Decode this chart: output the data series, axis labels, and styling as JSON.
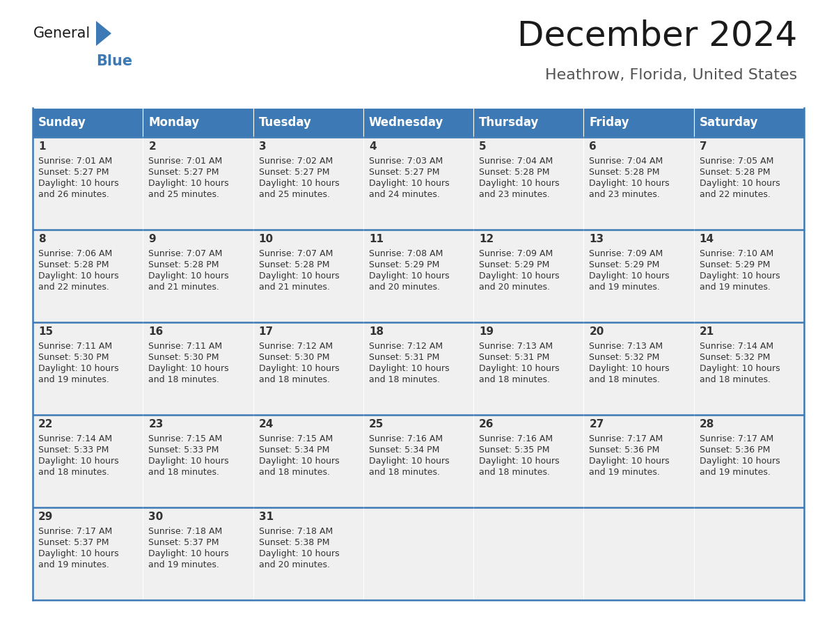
{
  "title": "December 2024",
  "subtitle": "Heathrow, Florida, United States",
  "header_color": "#3d7ab5",
  "header_text_color": "#ffffff",
  "cell_bg": "#f0f0f0",
  "text_color": "#333333",
  "border_color": "#3d7ab5",
  "days_of_week": [
    "Sunday",
    "Monday",
    "Tuesday",
    "Wednesday",
    "Thursday",
    "Friday",
    "Saturday"
  ],
  "calendar": [
    [
      {
        "day": "1",
        "sunrise": "7:01 AM",
        "sunset": "5:27 PM",
        "daylight_line1": "Daylight: 10 hours",
        "daylight_line2": "and 26 minutes."
      },
      {
        "day": "2",
        "sunrise": "7:01 AM",
        "sunset": "5:27 PM",
        "daylight_line1": "Daylight: 10 hours",
        "daylight_line2": "and 25 minutes."
      },
      {
        "day": "3",
        "sunrise": "7:02 AM",
        "sunset": "5:27 PM",
        "daylight_line1": "Daylight: 10 hours",
        "daylight_line2": "and 25 minutes."
      },
      {
        "day": "4",
        "sunrise": "7:03 AM",
        "sunset": "5:27 PM",
        "daylight_line1": "Daylight: 10 hours",
        "daylight_line2": "and 24 minutes."
      },
      {
        "day": "5",
        "sunrise": "7:04 AM",
        "sunset": "5:28 PM",
        "daylight_line1": "Daylight: 10 hours",
        "daylight_line2": "and 23 minutes."
      },
      {
        "day": "6",
        "sunrise": "7:04 AM",
        "sunset": "5:28 PM",
        "daylight_line1": "Daylight: 10 hours",
        "daylight_line2": "and 23 minutes."
      },
      {
        "day": "7",
        "sunrise": "7:05 AM",
        "sunset": "5:28 PM",
        "daylight_line1": "Daylight: 10 hours",
        "daylight_line2": "and 22 minutes."
      }
    ],
    [
      {
        "day": "8",
        "sunrise": "7:06 AM",
        "sunset": "5:28 PM",
        "daylight_line1": "Daylight: 10 hours",
        "daylight_line2": "and 22 minutes."
      },
      {
        "day": "9",
        "sunrise": "7:07 AM",
        "sunset": "5:28 PM",
        "daylight_line1": "Daylight: 10 hours",
        "daylight_line2": "and 21 minutes."
      },
      {
        "day": "10",
        "sunrise": "7:07 AM",
        "sunset": "5:28 PM",
        "daylight_line1": "Daylight: 10 hours",
        "daylight_line2": "and 21 minutes."
      },
      {
        "day": "11",
        "sunrise": "7:08 AM",
        "sunset": "5:29 PM",
        "daylight_line1": "Daylight: 10 hours",
        "daylight_line2": "and 20 minutes."
      },
      {
        "day": "12",
        "sunrise": "7:09 AM",
        "sunset": "5:29 PM",
        "daylight_line1": "Daylight: 10 hours",
        "daylight_line2": "and 20 minutes."
      },
      {
        "day": "13",
        "sunrise": "7:09 AM",
        "sunset": "5:29 PM",
        "daylight_line1": "Daylight: 10 hours",
        "daylight_line2": "and 19 minutes."
      },
      {
        "day": "14",
        "sunrise": "7:10 AM",
        "sunset": "5:29 PM",
        "daylight_line1": "Daylight: 10 hours",
        "daylight_line2": "and 19 minutes."
      }
    ],
    [
      {
        "day": "15",
        "sunrise": "7:11 AM",
        "sunset": "5:30 PM",
        "daylight_line1": "Daylight: 10 hours",
        "daylight_line2": "and 19 minutes."
      },
      {
        "day": "16",
        "sunrise": "7:11 AM",
        "sunset": "5:30 PM",
        "daylight_line1": "Daylight: 10 hours",
        "daylight_line2": "and 18 minutes."
      },
      {
        "day": "17",
        "sunrise": "7:12 AM",
        "sunset": "5:30 PM",
        "daylight_line1": "Daylight: 10 hours",
        "daylight_line2": "and 18 minutes."
      },
      {
        "day": "18",
        "sunrise": "7:12 AM",
        "sunset": "5:31 PM",
        "daylight_line1": "Daylight: 10 hours",
        "daylight_line2": "and 18 minutes."
      },
      {
        "day": "19",
        "sunrise": "7:13 AM",
        "sunset": "5:31 PM",
        "daylight_line1": "Daylight: 10 hours",
        "daylight_line2": "and 18 minutes."
      },
      {
        "day": "20",
        "sunrise": "7:13 AM",
        "sunset": "5:32 PM",
        "daylight_line1": "Daylight: 10 hours",
        "daylight_line2": "and 18 minutes."
      },
      {
        "day": "21",
        "sunrise": "7:14 AM",
        "sunset": "5:32 PM",
        "daylight_line1": "Daylight: 10 hours",
        "daylight_line2": "and 18 minutes."
      }
    ],
    [
      {
        "day": "22",
        "sunrise": "7:14 AM",
        "sunset": "5:33 PM",
        "daylight_line1": "Daylight: 10 hours",
        "daylight_line2": "and 18 minutes."
      },
      {
        "day": "23",
        "sunrise": "7:15 AM",
        "sunset": "5:33 PM",
        "daylight_line1": "Daylight: 10 hours",
        "daylight_line2": "and 18 minutes."
      },
      {
        "day": "24",
        "sunrise": "7:15 AM",
        "sunset": "5:34 PM",
        "daylight_line1": "Daylight: 10 hours",
        "daylight_line2": "and 18 minutes."
      },
      {
        "day": "25",
        "sunrise": "7:16 AM",
        "sunset": "5:34 PM",
        "daylight_line1": "Daylight: 10 hours",
        "daylight_line2": "and 18 minutes."
      },
      {
        "day": "26",
        "sunrise": "7:16 AM",
        "sunset": "5:35 PM",
        "daylight_line1": "Daylight: 10 hours",
        "daylight_line2": "and 18 minutes."
      },
      {
        "day": "27",
        "sunrise": "7:17 AM",
        "sunset": "5:36 PM",
        "daylight_line1": "Daylight: 10 hours",
        "daylight_line2": "and 19 minutes."
      },
      {
        "day": "28",
        "sunrise": "7:17 AM",
        "sunset": "5:36 PM",
        "daylight_line1": "Daylight: 10 hours",
        "daylight_line2": "and 19 minutes."
      }
    ],
    [
      {
        "day": "29",
        "sunrise": "7:17 AM",
        "sunset": "5:37 PM",
        "daylight_line1": "Daylight: 10 hours",
        "daylight_line2": "and 19 minutes."
      },
      {
        "day": "30",
        "sunrise": "7:18 AM",
        "sunset": "5:37 PM",
        "daylight_line1": "Daylight: 10 hours",
        "daylight_line2": "and 19 minutes."
      },
      {
        "day": "31",
        "sunrise": "7:18 AM",
        "sunset": "5:38 PM",
        "daylight_line1": "Daylight: 10 hours",
        "daylight_line2": "and 20 minutes."
      },
      null,
      null,
      null,
      null
    ]
  ],
  "logo_color_general": "#1a1a1a",
  "logo_color_blue": "#3d7ab5",
  "title_fontsize": 36,
  "subtitle_fontsize": 16,
  "header_fontsize": 12,
  "day_num_fontsize": 11,
  "cell_text_fontsize": 9
}
